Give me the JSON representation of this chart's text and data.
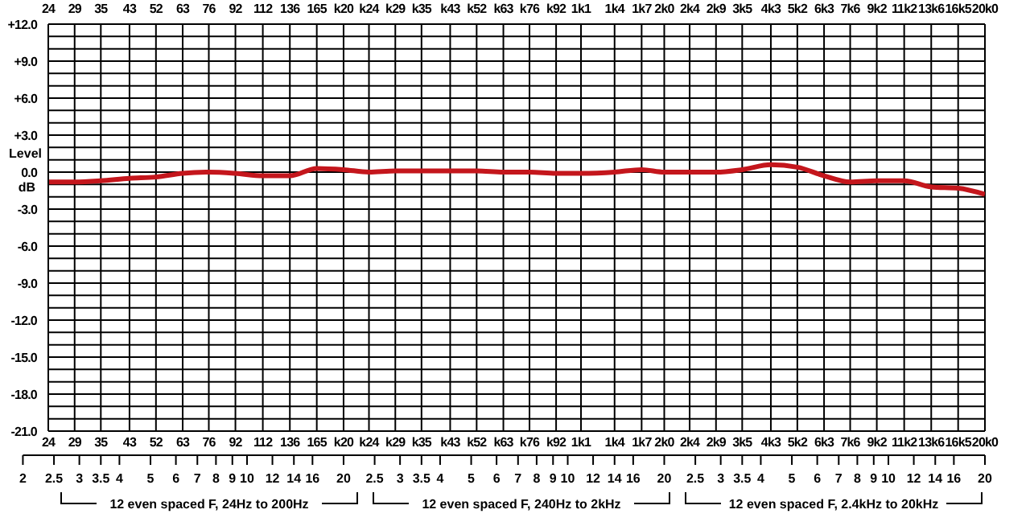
{
  "chart_data": {
    "type": "line",
    "ylabel": "Level dB",
    "x": [
      24,
      29,
      35,
      43,
      52,
      63,
      76,
      92,
      112,
      136,
      165,
      200,
      240,
      290,
      350,
      430,
      520,
      630,
      760,
      920,
      1100,
      1400,
      1700,
      2000,
      2400,
      2900,
      3500,
      4300,
      5200,
      6300,
      7600,
      9200,
      11200,
      13600,
      16500,
      20000
    ],
    "series": [
      {
        "color": "#c4161c",
        "values": [
          -0.8,
          -0.8,
          -0.7,
          -0.5,
          -0.4,
          -0.1,
          0.0,
          -0.1,
          -0.3,
          -0.3,
          0.3,
          0.2,
          0.0,
          0.1,
          0.1,
          0.1,
          0.1,
          0.0,
          0.0,
          -0.1,
          -0.1,
          0.0,
          0.2,
          0.0,
          0.0,
          0.0,
          0.2,
          0.6,
          0.4,
          -0.3,
          -0.8,
          -0.7,
          -0.7,
          -1.2,
          -1.3,
          -1.8
        ]
      }
    ],
    "log": "x",
    "xlim": [
      24,
      20000
    ],
    "xticks": [
      {
        "value": 24,
        "label": "24"
      },
      {
        "value": 29,
        "label": "29"
      },
      {
        "value": 35,
        "label": "35"
      },
      {
        "value": 43,
        "label": "43"
      },
      {
        "value": 52,
        "label": "52"
      },
      {
        "value": 63,
        "label": "63"
      },
      {
        "value": 76,
        "label": "76"
      },
      {
        "value": 92,
        "label": "92"
      },
      {
        "value": 112,
        "label": "112"
      },
      {
        "value": 136,
        "label": "136"
      },
      {
        "value": 165,
        "label": "165"
      },
      {
        "value": 200,
        "label": "k20"
      },
      {
        "value": 240,
        "label": "k24"
      },
      {
        "value": 290,
        "label": "k29"
      },
      {
        "value": 350,
        "label": "k35"
      },
      {
        "value": 430,
        "label": "k43"
      },
      {
        "value": 520,
        "label": "k52"
      },
      {
        "value": 630,
        "label": "k63"
      },
      {
        "value": 760,
        "label": "k76"
      },
      {
        "value": 920,
        "label": "k92"
      },
      {
        "value": 1100,
        "label": "1k1"
      },
      {
        "value": 1400,
        "label": "1k4"
      },
      {
        "value": 1700,
        "label": "1k7"
      },
      {
        "value": 2000,
        "label": "2k0"
      },
      {
        "value": 2400,
        "label": "2k4"
      },
      {
        "value": 2900,
        "label": "2k9"
      },
      {
        "value": 3500,
        "label": "3k5"
      },
      {
        "value": 4300,
        "label": "4k3"
      },
      {
        "value": 5200,
        "label": "5k2"
      },
      {
        "value": 6300,
        "label": "6k3"
      },
      {
        "value": 7600,
        "label": "7k6"
      },
      {
        "value": 9200,
        "label": "9k2"
      },
      {
        "value": 11200,
        "label": "11k2"
      },
      {
        "value": 13600,
        "label": "13k6"
      },
      {
        "value": 16500,
        "label": "16k5"
      },
      {
        "value": 20000,
        "label": "20k0"
      }
    ],
    "ylim": [
      -21,
      12
    ],
    "yticks": [
      {
        "value": 12,
        "label": "+12.0"
      },
      {
        "value": 11,
        "label": null
      },
      {
        "value": 10,
        "label": null
      },
      {
        "value": 9,
        "label": "+9.0"
      },
      {
        "value": 8,
        "label": null
      },
      {
        "value": 7,
        "label": null
      },
      {
        "value": 6,
        "label": "+6.0"
      },
      {
        "value": 5,
        "label": null
      },
      {
        "value": 4,
        "label": null
      },
      {
        "value": 3,
        "label": "+3.0"
      },
      {
        "value": 2,
        "label": null
      },
      {
        "value": 1,
        "label": null
      },
      {
        "value": 0,
        "label": "0.0"
      },
      {
        "value": -1,
        "label": null
      },
      {
        "value": -2,
        "label": null
      },
      {
        "value": -3,
        "label": "-3.0"
      },
      {
        "value": -4,
        "label": null
      },
      {
        "value": -5,
        "label": null
      },
      {
        "value": -6,
        "label": "-6.0"
      },
      {
        "value": -7,
        "label": null
      },
      {
        "value": -8,
        "label": null
      },
      {
        "value": -9,
        "label": "-9.0"
      },
      {
        "value": -10,
        "label": null
      },
      {
        "value": -11,
        "label": null
      },
      {
        "value": -12,
        "label": "-12.0"
      },
      {
        "value": -13,
        "label": null
      },
      {
        "value": -14,
        "label": null
      },
      {
        "value": -15,
        "label": "-15.0"
      },
      {
        "value": -16,
        "label": null
      },
      {
        "value": -17,
        "label": null
      },
      {
        "value": -18,
        "label": "-18.0"
      },
      {
        "value": -19,
        "label": null
      },
      {
        "value": -20,
        "label": null
      },
      {
        "value": -21,
        "label": "-21.0"
      }
    ],
    "grid": true,
    "marker": "none",
    "line_style": "solid",
    "annotations": [
      "12 even spaced  F, 24Hz to 200Hz",
      "12 even spaced  F, 240Hz to 2kHz",
      "12 even spaced  F, 2.4kHz to 20kHz",
      "2",
      "2.5",
      "3",
      "3.5",
      "4",
      "5",
      "6",
      "7",
      "8",
      "9",
      "10",
      "12",
      "14",
      "16",
      "20",
      "2.5",
      "3",
      "3.5",
      "4",
      "5",
      "6",
      "7",
      "8",
      "9",
      "10",
      "12",
      "14",
      "16",
      "20",
      "2.5",
      "3",
      "3.5",
      "4",
      "5",
      "6",
      "7",
      "8",
      "9",
      "10",
      "12",
      "14",
      "16",
      "20"
    ]
  }
}
